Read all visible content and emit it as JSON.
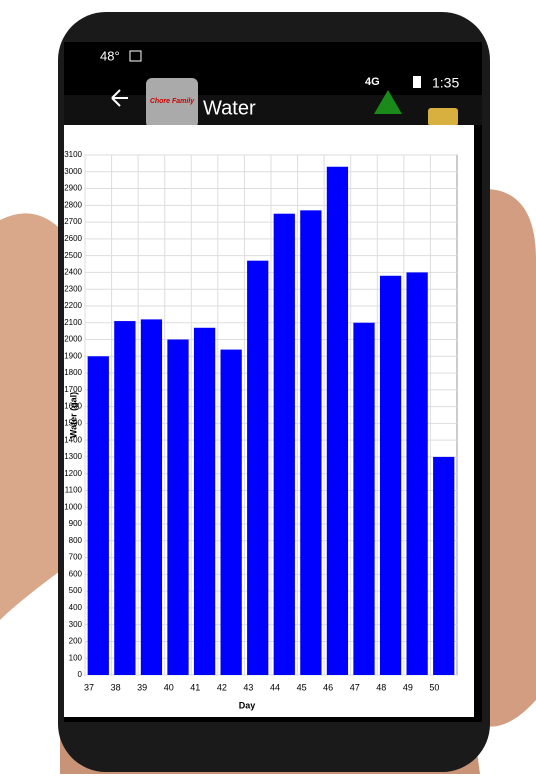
{
  "status_bar": {
    "temperature": "48°",
    "network": "4G",
    "time": "1:35"
  },
  "app_bar": {
    "logo": "Chore Family",
    "title": "Water"
  },
  "chart_data": {
    "type": "bar",
    "x_label": "Day",
    "y_label": "Water (gal)",
    "categories": [
      "37",
      "38",
      "39",
      "40",
      "41",
      "42",
      "43",
      "44",
      "45",
      "46",
      "47",
      "48",
      "49",
      "50"
    ],
    "values": [
      1900,
      2110,
      2120,
      2000,
      2070,
      1940,
      2470,
      2750,
      2770,
      3030,
      2100,
      2380,
      2400,
      1300
    ],
    "color": "#0000ff",
    "ylim": [
      0,
      3100
    ],
    "yticks": [
      0,
      100,
      200,
      300,
      400,
      500,
      600,
      700,
      800,
      900,
      1000,
      1100,
      1200,
      1300,
      1400,
      1500,
      1600,
      1700,
      1800,
      1900,
      2000,
      2100,
      2200,
      2300,
      2400,
      2500,
      2600,
      2700,
      2800,
      2900,
      3000,
      3100
    ],
    "grid": true
  }
}
